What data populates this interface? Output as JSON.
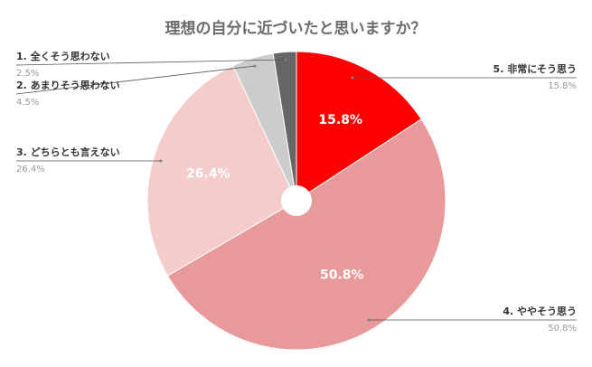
{
  "chart_data": {
    "type": "pie",
    "variant": "donut",
    "title": "理想の自分に近づいたと思いますか？",
    "slices": [
      {
        "label": "5. 非常にそう思う",
        "value": 15.8,
        "display": "15.8%",
        "color": "#ff0000"
      },
      {
        "label": "4. ややそう思う",
        "value": 50.8,
        "display": "50.8%",
        "color": "#e89a9a"
      },
      {
        "label": "3. どちらとも言えない",
        "value": 26.4,
        "display": "26.4%",
        "color": "#f4cccc"
      },
      {
        "label": "2. あまりそう思わない",
        "value": 4.5,
        "display": "4.5%",
        "color": "#cccccc"
      },
      {
        "label": "1. 全くそう思わない",
        "value": 2.5,
        "display": "2.5%",
        "color": "#666666"
      }
    ],
    "legend_placement": "callouts"
  }
}
